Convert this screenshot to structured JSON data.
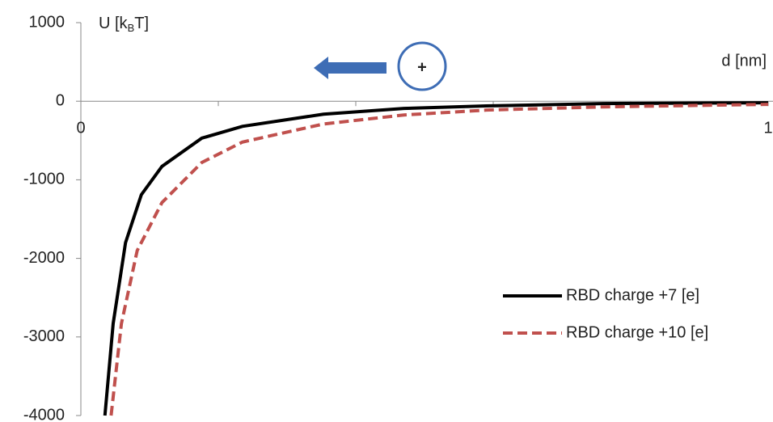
{
  "chart_data": {
    "type": "line",
    "ylabel_parts": [
      "U [k",
      "B",
      "T]"
    ],
    "xlabel": "d [nm]",
    "annotation": "+",
    "xlim": [
      0,
      1
    ],
    "xticks": [
      0,
      1
    ],
    "xminor_ticks": [
      0.2,
      0.4,
      0.6,
      0.8
    ],
    "ylim": [
      -4000,
      1000
    ],
    "yticks": [
      -4000,
      -3000,
      -2000,
      -1000,
      0,
      1000
    ],
    "legend": "lower right",
    "series": [
      {
        "name": "RBD charge +7 [e]",
        "color": "#000000",
        "dash": false,
        "x": [
          0.035,
          0.047,
          0.065,
          0.088,
          0.118,
          0.176,
          0.235,
          0.353,
          0.47,
          0.59,
          0.76,
          1.0
        ],
        "values": [
          -4000,
          -2830,
          -1800,
          -1190,
          -830,
          -470,
          -320,
          -165,
          -92,
          -60,
          -30,
          -20
        ]
      },
      {
        "name": "RBD charge +10 [e]",
        "color": "#c0504d",
        "dash": true,
        "x": [
          0.044,
          0.059,
          0.082,
          0.118,
          0.176,
          0.235,
          0.353,
          0.47,
          0.59,
          0.76,
          1.0
        ],
        "values": [
          -4000,
          -2830,
          -1900,
          -1290,
          -780,
          -520,
          -290,
          -175,
          -113,
          -72,
          -40
        ]
      }
    ]
  }
}
